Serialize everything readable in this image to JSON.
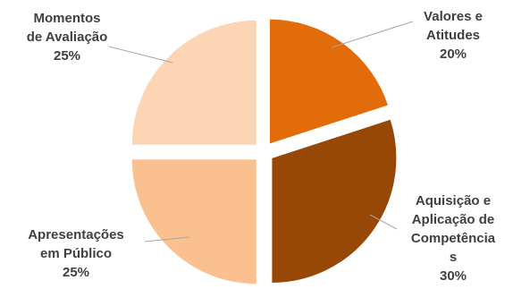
{
  "chart_data": {
    "type": "pie",
    "exploded": true,
    "slices": [
      {
        "label": "Valores e Atitudes",
        "label_lines": [
          "Valores e",
          "Atitudes"
        ],
        "value": 20,
        "percent_label": "20%",
        "color": "#E36C0A"
      },
      {
        "label": "Aquisição e Aplicação de Competências",
        "label_lines": [
          "Aquisição e",
          "Aplicação de",
          "Competência",
          "s"
        ],
        "value": 30,
        "percent_label": "30%",
        "color": "#974806"
      },
      {
        "label": "Apresentações em Público",
        "label_lines": [
          "Apresentações",
          "em Público"
        ],
        "value": 25,
        "percent_label": "25%",
        "color": "#FAC090"
      },
      {
        "label": "Momentos de Avaliação",
        "label_lines": [
          "Momentos",
          "de Avaliação"
        ],
        "value": 25,
        "percent_label": "25%",
        "color": "#FCD5B5"
      }
    ],
    "start_angle": "12 o'clock",
    "direction": "clockwise",
    "leader_line_color": "#A6A6A6",
    "label_color": "#404040"
  }
}
